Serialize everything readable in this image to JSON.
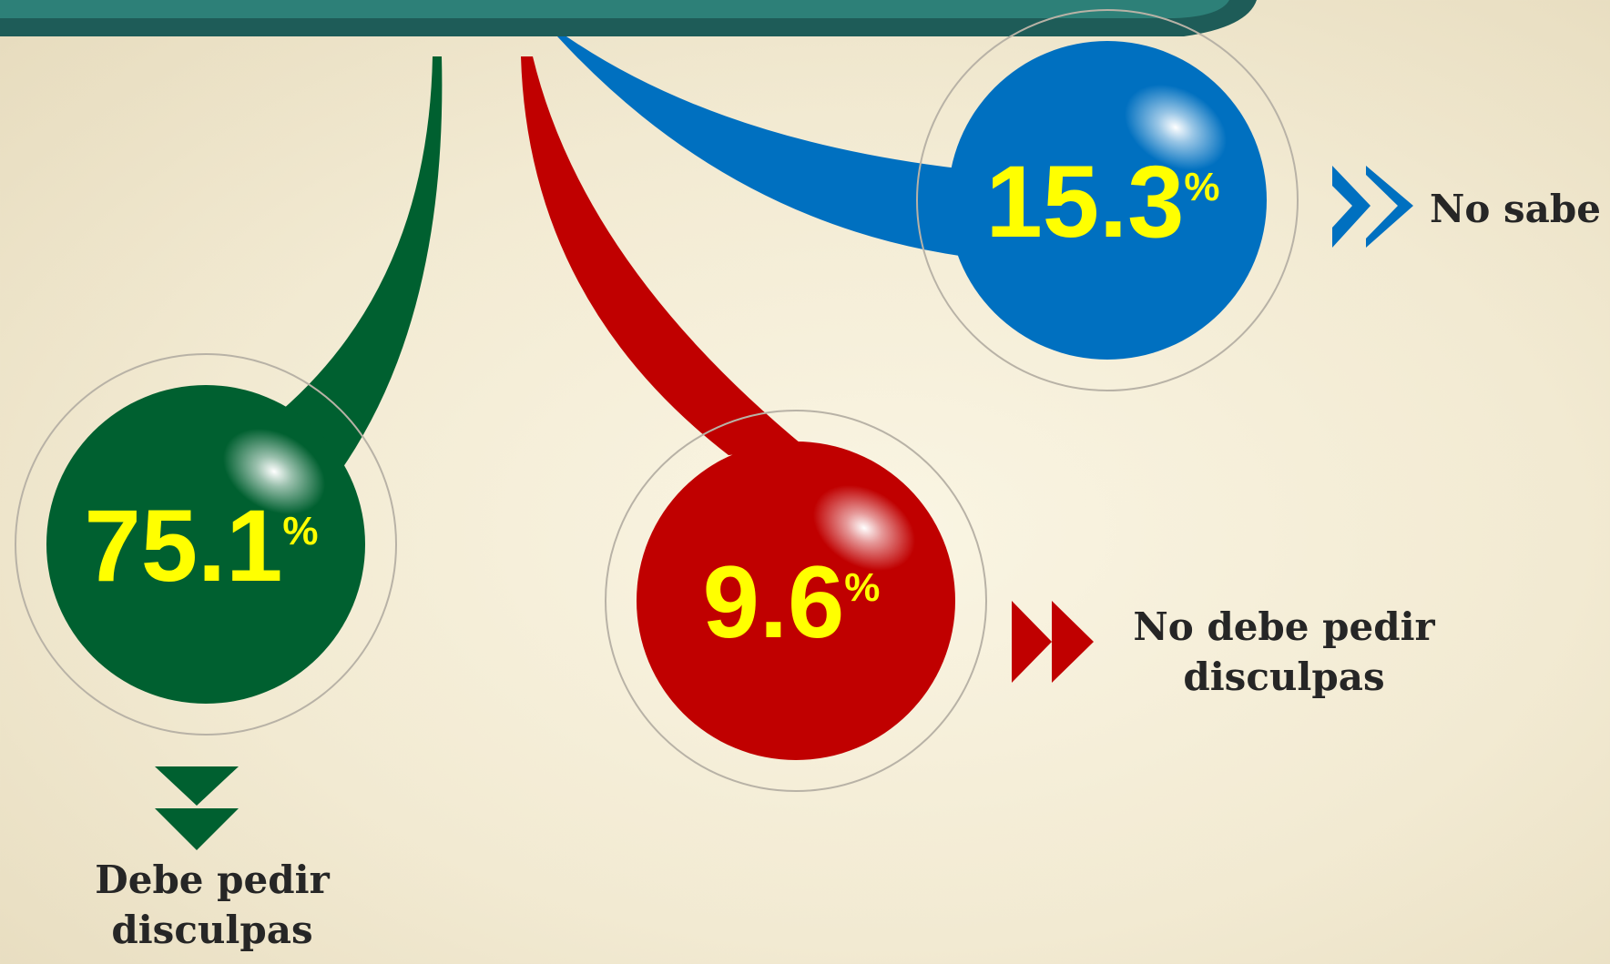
{
  "chart_data": {
    "type": "bubble",
    "categories": [
      "Debe pedir disculpas",
      "No debe pedir disculpas",
      "No sabe"
    ],
    "values": [
      75.1,
      9.6,
      15.3
    ],
    "unit": "%",
    "colors": [
      "#006030",
      "#c00000",
      "#0070c0"
    ]
  }
}
